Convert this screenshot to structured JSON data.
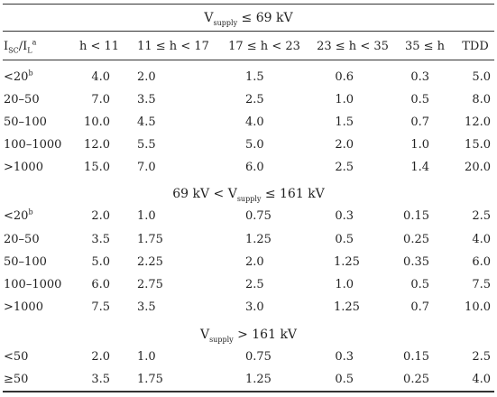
{
  "sections": [
    {
      "title": {
        "pre": "V",
        "sub": "supply",
        "post": " ≤ 69 kV"
      },
      "rows": [
        [
          "<20",
          "4.0",
          "2.0",
          "1.5",
          "0.6",
          "0.3",
          "5.0"
        ],
        [
          "20–50",
          "7.0",
          "3.5",
          "2.5",
          "1.0",
          "0.5",
          "8.0"
        ],
        [
          "50–100",
          "10.0",
          "4.5",
          "4.0",
          "1.5",
          "0.7",
          "12.0"
        ],
        [
          "100–1000",
          "12.0",
          "5.5",
          "5.0",
          "2.0",
          "1.0",
          "15.0"
        ],
        [
          ">1000",
          "15.0",
          "7.0",
          "6.0",
          "2.5",
          "1.4",
          "20.0"
        ]
      ]
    },
    {
      "title": {
        "pre": "69 kV < V",
        "sub": "supply",
        "post": " ≤ 161 kV"
      },
      "rows": [
        [
          "<20",
          "2.0",
          "1.0",
          "0.75",
          "0.3",
          "0.15",
          "2.5"
        ],
        [
          "20–50",
          "3.5",
          "1.75",
          "1.25",
          "0.5",
          "0.25",
          "4.0"
        ],
        [
          "50–100",
          "5.0",
          "2.25",
          "2.0",
          "1.25",
          "0.35",
          "6.0"
        ],
        [
          "100–1000",
          "6.0",
          "2.75",
          "2.5",
          "1.0",
          "0.5",
          "7.5"
        ],
        [
          ">1000",
          "7.5",
          "3.5",
          "3.0",
          "1.25",
          "0.7",
          "10.0"
        ]
      ]
    },
    {
      "title": {
        "pre": "V",
        "sub": "supply",
        "post": " > 161 kV"
      },
      "rows": [
        [
          "<50",
          "2.0",
          "1.0",
          "0.75",
          "0.3",
          "0.15",
          "2.5"
        ],
        [
          "≥50",
          "3.5",
          "1.75",
          "1.25",
          "0.5",
          "0.25",
          "4.0"
        ]
      ]
    }
  ],
  "header": {
    "ratio": {
      "i1": "I",
      "s1": "SC",
      "slash": "/I",
      "s2": "L",
      "sup": "a"
    },
    "cols": [
      "h < 11",
      "11 ≤ h < 17",
      "17 ≤ h < 23",
      "23 ≤ h < 35",
      "35 ≤ h",
      "TDD"
    ]
  },
  "footnote_mark": "b"
}
